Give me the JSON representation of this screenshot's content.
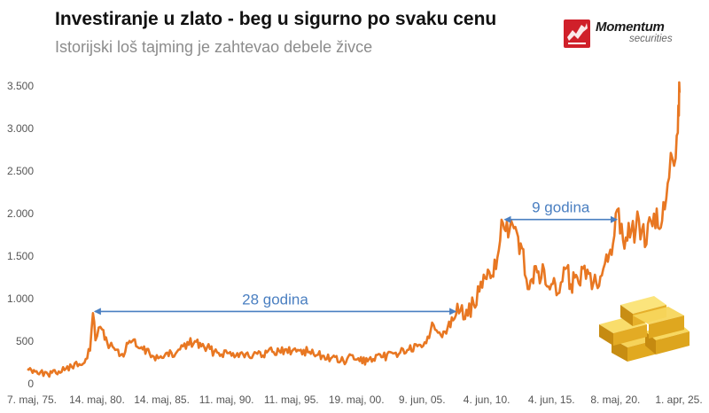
{
  "header": {
    "title": "Investiranje u zlato - beg u sigurno po svaku cenu",
    "subtitle": "Istorijski loš tajming je zahtevao debele živce"
  },
  "logo": {
    "name": "Momentum",
    "sub": "securities"
  },
  "chart_data": {
    "type": "line",
    "title": "Investiranje u zlato - beg u sigurno po svaku cenu",
    "subtitle": "Istorijski loš tajming je zahtevao debele živce",
    "xlabel": "",
    "ylabel": "",
    "ylim": [
      0,
      3500
    ],
    "yticks": [
      0,
      500,
      1000,
      1500,
      2000,
      2500,
      3000,
      3500
    ],
    "ytick_labels": [
      "0",
      "500",
      "1.000",
      "1.500",
      "2.000",
      "2.500",
      "3.000",
      "3.500"
    ],
    "xtick_labels": [
      "7. maj, 75.",
      "14. maj, 80.",
      "14. maj, 85.",
      "11. maj, 90.",
      "11. maj, 95.",
      "19. maj, 00.",
      "9. jun, 05.",
      "4. jun, 10.",
      "4. jun, 15.",
      "8. maj, 20.",
      "1. apr, 25."
    ],
    "xtick_dates": [
      "1975-05-07",
      "1980-05-14",
      "1985-05-14",
      "1990-05-11",
      "1995-05-11",
      "2000-05-19",
      "2005-06-09",
      "2010-06-04",
      "2015-06-04",
      "2020-05-08",
      "2025-04-01"
    ],
    "grid": false,
    "series": [
      {
        "color": "#e87722",
        "x": [
          "1975-01-01",
          "1975-07-01",
          "1976-01-01",
          "1976-08-01",
          "1977-06-01",
          "1978-06-01",
          "1979-01-01",
          "1979-07-01",
          "1979-11-01",
          "1980-01-21",
          "1980-04-01",
          "1980-07-01",
          "1980-10-01",
          "1981-03-01",
          "1981-09-01",
          "1982-06-01",
          "1982-09-01",
          "1983-02-01",
          "1983-08-01",
          "1984-06-01",
          "1985-02-01",
          "1985-08-01",
          "1986-06-01",
          "1987-01-01",
          "1987-12-01",
          "1988-06-01",
          "1989-06-01",
          "1990-06-01",
          "1991-06-01",
          "1992-06-01",
          "1993-03-01",
          "1993-08-01",
          "1994-06-01",
          "1995-06-01",
          "1996-02-01",
          "1996-10-01",
          "1997-06-01",
          "1998-06-01",
          "1999-08-01",
          "1999-10-01",
          "2000-06-01",
          "2001-04-01",
          "2002-06-01",
          "2003-06-01",
          "2004-06-01",
          "2005-06-01",
          "2006-05-01",
          "2006-09-01",
          "2007-06-01",
          "2008-03-01",
          "2008-10-01",
          "2009-06-01",
          "2010-06-01",
          "2011-04-01",
          "2011-09-06",
          "2012-02-01",
          "2012-10-01",
          "2013-04-01",
          "2013-06-28",
          "2013-12-01",
          "2014-06-01",
          "2015-06-01",
          "2015-12-01",
          "2016-07-01",
          "2016-12-01",
          "2017-06-01",
          "2018-06-01",
          "2018-09-01",
          "2019-06-01",
          "2019-09-01",
          "2020-03-01",
          "2020-08-07",
          "2020-11-01",
          "2021-03-01",
          "2021-08-01",
          "2022-03-01",
          "2022-10-01",
          "2023-05-01",
          "2023-10-01",
          "2024-03-01",
          "2024-07-01",
          "2024-10-01",
          "2025-01-01",
          "2025-03-01",
          "2025-04-01",
          "2025-04-21"
        ],
        "values": [
          175,
          160,
          135,
          110,
          145,
          200,
          230,
          290,
          390,
          830,
          510,
          660,
          640,
          480,
          420,
          320,
          480,
          500,
          420,
          360,
          300,
          330,
          350,
          440,
          500,
          440,
          380,
          360,
          360,
          340,
          330,
          390,
          385,
          385,
          400,
          375,
          340,
          300,
          255,
          320,
          285,
          265,
          315,
          365,
          400,
          430,
          690,
          600,
          660,
          940,
          760,
          940,
          1230,
          1480,
          1890,
          1720,
          1780,
          1580,
          1230,
          1230,
          1320,
          1170,
          1060,
          1350,
          1170,
          1250,
          1300,
          1190,
          1350,
          1520,
          1640,
          2060,
          1880,
          1720,
          1800,
          1930,
          1640,
          2000,
          1820,
          2050,
          2420,
          2650,
          2650,
          2950,
          3150,
          3420
        ]
      }
    ],
    "annotations": [
      {
        "text": "28 godina",
        "from": "1980-01-21",
        "to": "2008-03-01",
        "y": 850
      },
      {
        "text": "9 godina",
        "from": "2011-09-06",
        "to": "2020-08-07",
        "y": 1930
      }
    ]
  }
}
